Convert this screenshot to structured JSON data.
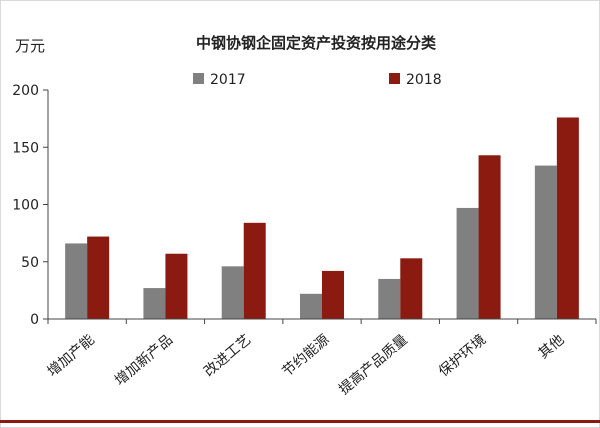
{
  "chart_data": {
    "type": "bar",
    "title": "中钢协钢企固定资产投资按用途分类",
    "ylabel": "万元",
    "xlabel": "",
    "ylim": [
      0,
      200
    ],
    "yticks": [
      0,
      50,
      100,
      150,
      200
    ],
    "grid": false,
    "legend_position": "top",
    "categories": [
      "增加产能",
      "增加新产品",
      "改进工艺",
      "节约能源",
      "提高产品质量",
      "保护环境",
      "其他"
    ],
    "series": [
      {
        "name": "2017",
        "color": "#808080",
        "values": [
          66,
          27,
          46,
          22,
          35,
          97,
          134
        ]
      },
      {
        "name": "2018",
        "color": "#8b1a10",
        "values": [
          72,
          57,
          84,
          42,
          53,
          143,
          176
        ]
      }
    ]
  }
}
